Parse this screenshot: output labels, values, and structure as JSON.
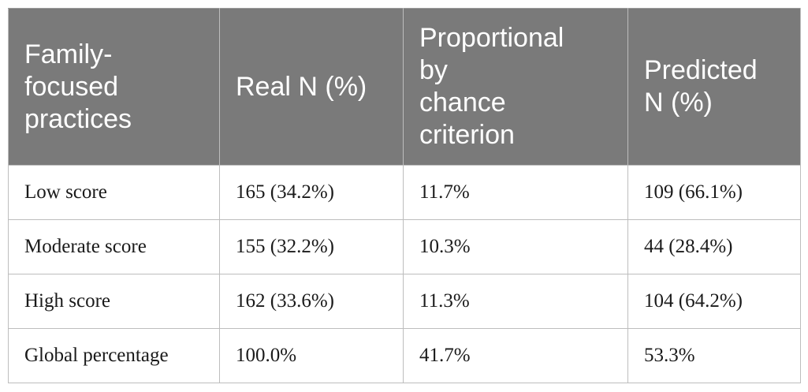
{
  "table": {
    "headers": [
      "Family-\nfocused\npractices",
      "Real N (%)",
      "Proportional\nby\nchance\ncriterion",
      "Predicted\nN (%)"
    ],
    "rows": [
      [
        "Low score",
        "165 (34.2%)",
        "11.7%",
        "109 (66.1%)"
      ],
      [
        "Moderate score",
        "155 (32.2%)",
        "10.3%",
        "44 (28.4%)"
      ],
      [
        "High score",
        "162 (33.6%)",
        "11.3%",
        "104 (64.2%)"
      ],
      [
        "Global percentage",
        "100.0%",
        "41.7%",
        "53.3%"
      ]
    ]
  }
}
